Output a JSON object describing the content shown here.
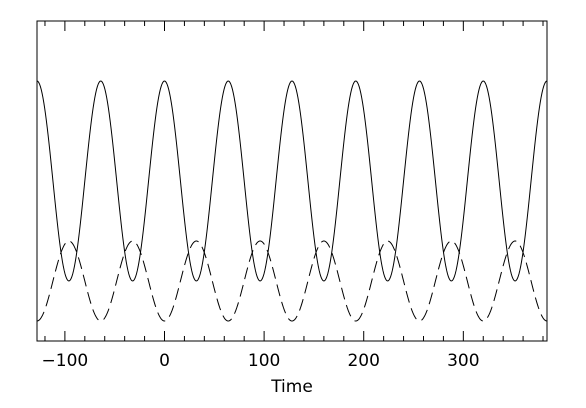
{
  "chart_data": {
    "type": "line",
    "title": "",
    "xlabel": "Time",
    "ylabel": "",
    "xlim": [
      -128,
      384
    ],
    "ylim": [
      -1.6,
      1.6
    ],
    "grid": false,
    "legend": "none",
    "xticks": [
      {
        "value": -100,
        "label": "−100"
      },
      {
        "value": 0,
        "label": "0"
      },
      {
        "value": 100,
        "label": "100"
      },
      {
        "value": 200,
        "label": "200"
      },
      {
        "value": 300,
        "label": "300"
      }
    ],
    "series": [
      {
        "style": "solid",
        "color": "#000000",
        "x": [
          -128,
          -112,
          -96,
          -80,
          -64,
          -48,
          -32,
          -16,
          0,
          16,
          32,
          48,
          64,
          80,
          96,
          112,
          128,
          144,
          160,
          176,
          192,
          208,
          224,
          240,
          256,
          272,
          288,
          304,
          320,
          336,
          352,
          368,
          384
        ],
        "y": [
          1.0,
          0.0,
          -1.0,
          0.0,
          1.0,
          0.0,
          -1.0,
          0.0,
          1.0,
          0.0,
          -1.0,
          0.0,
          1.0,
          0.0,
          -1.0,
          0.0,
          1.0,
          0.0,
          -1.0,
          0.0,
          1.0,
          0.0,
          -1.0,
          0.0,
          1.0,
          0.0,
          -1.0,
          0.0,
          1.0,
          0.0,
          -1.0,
          0.0,
          1.0
        ]
      },
      {
        "style": "dashed",
        "color": "#000000",
        "x": [
          -128,
          -112,
          -96,
          -80,
          -64,
          -48,
          -32,
          -16,
          0,
          16,
          32,
          48,
          64,
          80,
          96,
          112,
          128,
          144,
          160,
          176,
          192,
          208,
          224,
          240,
          256,
          272,
          288,
          304,
          320,
          336,
          352,
          368,
          384
        ],
        "y": [
          -1.4,
          -1.0,
          -0.6,
          -1.0,
          -1.4,
          -1.0,
          -0.6,
          -1.0,
          -1.4,
          -1.0,
          -0.6,
          -1.0,
          -1.4,
          -1.0,
          -0.6,
          -1.0,
          -1.4,
          -1.0,
          -0.6,
          -1.0,
          -1.4,
          -1.0,
          -0.6,
          -1.0,
          -1.4,
          -1.0,
          -0.6,
          -1.0,
          -1.4,
          -1.0,
          -0.6,
          -1.0,
          -1.4
        ]
      }
    ]
  }
}
